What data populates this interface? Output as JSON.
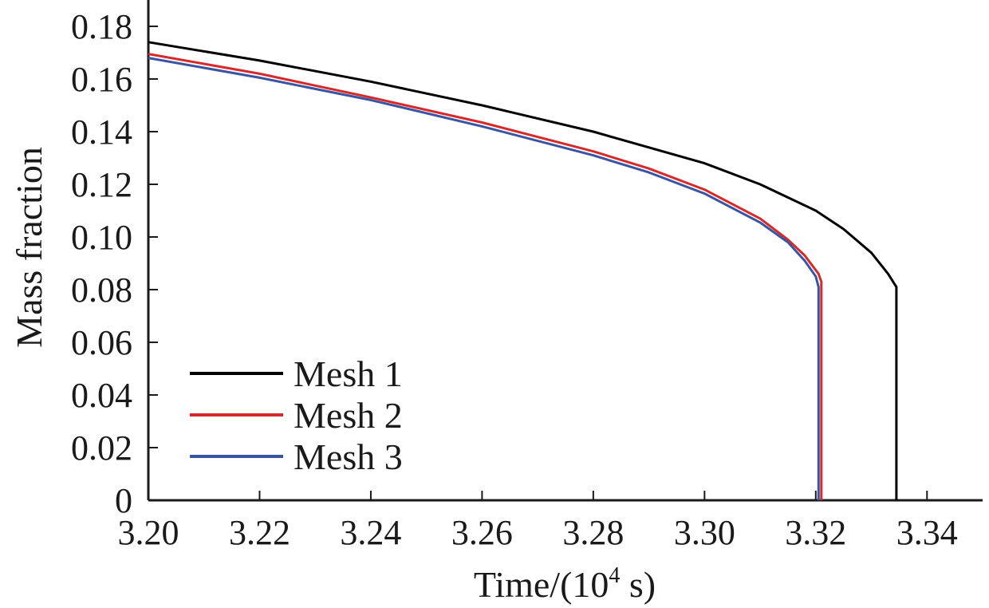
{
  "chart_data": {
    "type": "line",
    "title": "",
    "xlabel": "Time/(10",
    "xlabel_sup": "4",
    "xlabel_tail": " s)",
    "ylabel": "Mass fraction",
    "xlim": [
      3.2,
      3.35
    ],
    "ylim": [
      0,
      0.19
    ],
    "xticks": [
      3.2,
      3.22,
      3.24,
      3.26,
      3.28,
      3.3,
      3.32,
      3.34
    ],
    "xtick_labels": [
      "3.20",
      "3.22",
      "3.24",
      "3.26",
      "3.28",
      "3.30",
      "3.32",
      "3.34"
    ],
    "yticks": [
      0,
      0.02,
      0.04,
      0.06,
      0.08,
      0.1,
      0.12,
      0.14,
      0.16,
      0.18
    ],
    "ytick_labels": [
      "0",
      "0.02",
      "0.04",
      "0.06",
      "0.08",
      "0.10",
      "0.12",
      "0.14",
      "0.16",
      "0.18"
    ],
    "grid": false,
    "legend_position": "lower-left",
    "series": [
      {
        "name": "Mesh 1",
        "color": "#000000",
        "x": [
          3.2,
          3.22,
          3.24,
          3.26,
          3.28,
          3.3,
          3.31,
          3.32,
          3.325,
          3.33,
          3.333,
          3.3345,
          3.3345,
          3.3345
        ],
        "y": [
          0.174,
          0.167,
          0.159,
          0.15,
          0.14,
          0.128,
          0.12,
          0.11,
          0.103,
          0.094,
          0.086,
          0.081,
          0.04,
          0.0
        ]
      },
      {
        "name": "Mesh 2",
        "color": "#d62a2a",
        "x": [
          3.2,
          3.22,
          3.24,
          3.26,
          3.28,
          3.29,
          3.3,
          3.31,
          3.315,
          3.318,
          3.3205,
          3.321,
          3.321,
          3.321
        ],
        "y": [
          0.1695,
          0.162,
          0.153,
          0.1435,
          0.1325,
          0.126,
          0.118,
          0.107,
          0.099,
          0.093,
          0.086,
          0.083,
          0.04,
          0.0
        ]
      },
      {
        "name": "Mesh 3",
        "color": "#3a54a4",
        "x": [
          3.2,
          3.22,
          3.24,
          3.26,
          3.28,
          3.29,
          3.3,
          3.31,
          3.315,
          3.318,
          3.32,
          3.3205,
          3.3205,
          3.3205
        ],
        "y": [
          0.168,
          0.1605,
          0.152,
          0.142,
          0.131,
          0.1245,
          0.1165,
          0.1055,
          0.098,
          0.091,
          0.085,
          0.081,
          0.04,
          0.0
        ]
      }
    ]
  }
}
